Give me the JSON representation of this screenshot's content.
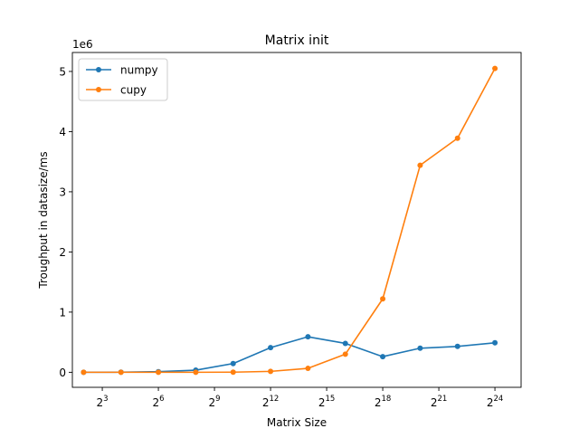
{
  "chart_data": {
    "type": "line",
    "title": "Matrix init",
    "xlabel": "Matrix Size",
    "ylabel": "Troughput in datasize/ms",
    "y_scale_label": "1e6",
    "x_scale": "log2",
    "xlim_exp": [
      1.4,
      25.4
    ],
    "ylim": [
      -250000,
      5315000
    ],
    "x_ticks": [
      {
        "exp": 3,
        "base": "2",
        "power": "3"
      },
      {
        "exp": 6,
        "base": "2",
        "power": "6"
      },
      {
        "exp": 9,
        "base": "2",
        "power": "9"
      },
      {
        "exp": 12,
        "base": "2",
        "power": "12"
      },
      {
        "exp": 15,
        "base": "2",
        "power": "15"
      },
      {
        "exp": 18,
        "base": "2",
        "power": "18"
      },
      {
        "exp": 21,
        "base": "2",
        "power": "21"
      },
      {
        "exp": 24,
        "base": "2",
        "power": "24"
      }
    ],
    "y_ticks": [
      {
        "value": 0,
        "label": "0"
      },
      {
        "value": 1000000,
        "label": "1"
      },
      {
        "value": 2000000,
        "label": "2"
      },
      {
        "value": 3000000,
        "label": "3"
      },
      {
        "value": 4000000,
        "label": "4"
      },
      {
        "value": 5000000,
        "label": "5"
      }
    ],
    "grid": false,
    "legend_position": "top-left",
    "x": [
      4,
      16,
      64,
      256,
      1024,
      4096,
      16384,
      65536,
      262144,
      1048576,
      4194304,
      16777216
    ],
    "series": [
      {
        "name": "numpy",
        "color": "#1f77b4",
        "values": [
          0,
          2000,
          10000,
          35000,
          145000,
          410000,
          590000,
          480000,
          260000,
          400000,
          430000,
          490000
        ]
      },
      {
        "name": "cupy",
        "color": "#ff7f0e",
        "values": [
          0,
          0,
          0,
          0,
          2000,
          15000,
          65000,
          300000,
          1220000,
          3440000,
          3890000,
          5050000
        ]
      }
    ]
  }
}
